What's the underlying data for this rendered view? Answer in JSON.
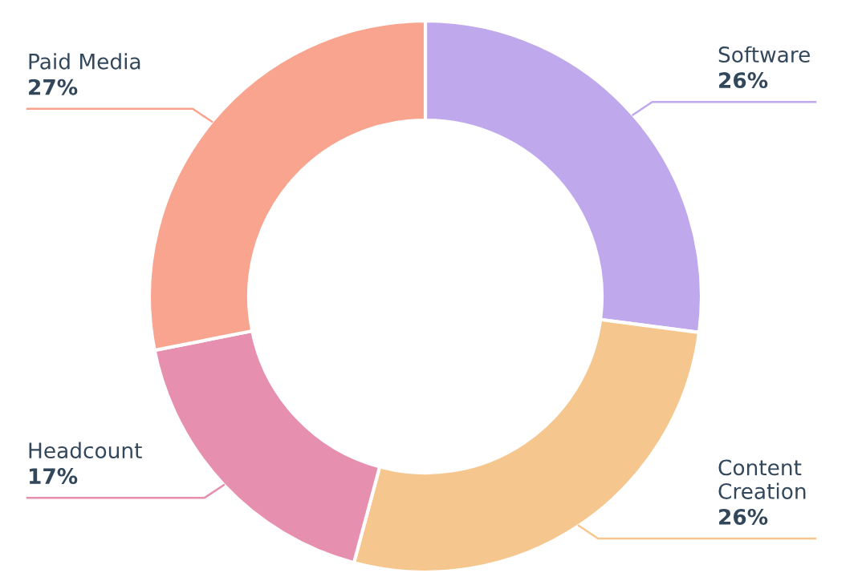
{
  "chart_data": {
    "type": "donut",
    "categories": [
      "Software",
      "Content Creation",
      "Headcount",
      "Paid Media"
    ],
    "values": [
      26,
      26,
      17,
      27
    ],
    "colors": [
      "#c0a8ec",
      "#f5c78e",
      "#e78fae",
      "#f8a48e"
    ],
    "value_labels": [
      "26%",
      "26%",
      "17%",
      "27%"
    ],
    "legend": false
  }
}
